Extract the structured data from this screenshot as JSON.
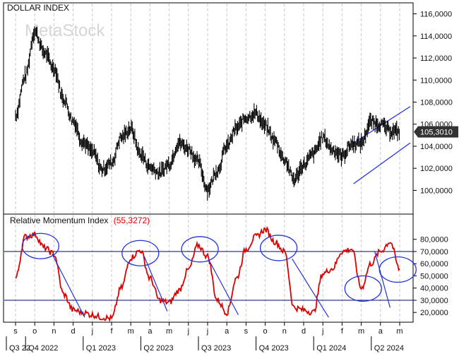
{
  "chart_data": [
    {
      "type": "line",
      "title": "DOLLAR INDEX",
      "watermark": "MetaStock",
      "ylim": [
        99000,
        117000
      ],
      "ytick_labels": [
        "100,0000",
        "102,0000",
        "104,0000",
        "106,0000",
        "108,0000",
        "110,0000",
        "112,0000",
        "114,0000",
        "116,0000"
      ],
      "ytick_values": [
        100000,
        102000,
        104000,
        106000,
        108000,
        110000,
        112000,
        114000,
        116000
      ],
      "last_value_label": "105,3010",
      "last_value": 105301,
      "x_months": [
        "s",
        "o",
        "n",
        "d",
        "j",
        "f",
        "m",
        "a",
        "m",
        "j",
        "j",
        "a",
        "s",
        "o",
        "n",
        "d",
        "j",
        "f",
        "m",
        "a",
        "m"
      ],
      "x_quarters": [
        "Q3 22",
        "Q4 2022",
        "Q1 2023",
        "Q2 2023",
        "Q3 2023",
        "Q4 2023",
        "Q1 2024",
        "Q2 2024"
      ],
      "series": [
        {
          "color": "#000000",
          "x": [
            0,
            0.5,
            1,
            1.5,
            2,
            2.5,
            3,
            3.5,
            4,
            4.5,
            5,
            5.5,
            6,
            6.5,
            7,
            7.5,
            8,
            8.5,
            9,
            9.5,
            10,
            10.5,
            11,
            11.5,
            12,
            12.5,
            13,
            13.5,
            14,
            14.5,
            15,
            15.5,
            16,
            16.5,
            17,
            17.5,
            18,
            18.5,
            19,
            19.5,
            20
          ],
          "values": [
            106800,
            110300,
            114400,
            112500,
            111100,
            108300,
            106300,
            104400,
            103500,
            101900,
            102500,
            104800,
            105600,
            103300,
            102100,
            101600,
            102400,
            104300,
            103800,
            102600,
            100100,
            101800,
            104000,
            105600,
            106600,
            107000,
            105800,
            104500,
            102800,
            101000,
            102300,
            103300,
            104800,
            103700,
            103100,
            104200,
            104300,
            106200,
            106000,
            105400,
            105301
          ]
        }
      ],
      "channel_lines": [
        {
          "color": "#2233dd",
          "x": [
            17.6,
            20.55
          ],
          "values": [
            104300,
            107600
          ]
        },
        {
          "color": "#2233dd",
          "x": [
            17.6,
            20.55
          ],
          "values": [
            100600,
            104300
          ]
        }
      ]
    },
    {
      "type": "line",
      "title": "Relative Momentum Index",
      "current_value_label": "(55,3272)",
      "ylim": [
        12000,
        92000
      ],
      "ytick_labels": [
        "20,0000",
        "30,0000",
        "40,0000",
        "50,0000",
        "60,0000",
        "70,0000",
        "80,0000"
      ],
      "ytick_values": [
        20000,
        30000,
        40000,
        50000,
        60000,
        70000,
        80000
      ],
      "hlines": [
        70000,
        30000
      ],
      "series": [
        {
          "color": "#dd0000",
          "x": [
            0,
            0.5,
            1,
            1.5,
            2,
            2.5,
            3,
            3.5,
            4,
            4.5,
            5,
            5.5,
            6,
            6.5,
            7,
            7.5,
            8,
            8.5,
            9,
            9.5,
            10,
            10.5,
            11,
            11.5,
            12,
            12.5,
            13,
            13.5,
            14,
            14.5,
            15,
            15.5,
            16,
            16.5,
            17,
            17.5,
            18,
            18.5,
            19,
            19.5,
            20
          ],
          "values": [
            48000,
            82000,
            84000,
            73000,
            68000,
            35000,
            22000,
            20000,
            18000,
            16000,
            15000,
            40000,
            65000,
            71000,
            48000,
            30000,
            28000,
            38000,
            55000,
            75000,
            66000,
            30000,
            20000,
            48000,
            72000,
            82000,
            88000,
            78000,
            70000,
            24000,
            22000,
            20000,
            52000,
            56000,
            70000,
            72000,
            40000,
            60000,
            70000,
            78000,
            55327
          ]
        }
      ],
      "circled_peaks": [
        1.3,
        6.5,
        9.6,
        13.7,
        18.1,
        19.9
      ],
      "trend_lines": [
        {
          "color": "#2233dd",
          "x": [
            1.9,
            3.6
          ],
          "values": [
            68000,
            16000
          ]
        },
        {
          "color": "#2233dd",
          "x": [
            6.7,
            7.9
          ],
          "values": [
            66000,
            21000
          ]
        },
        {
          "color": "#2233dd",
          "x": [
            10.1,
            11.6
          ],
          "values": [
            62000,
            18000
          ]
        },
        {
          "color": "#2233dd",
          "x": [
            14.4,
            16.3
          ],
          "values": [
            64000,
            16000
          ]
        },
        {
          "color": "#2233dd",
          "x": [
            18.7,
            19.5
          ],
          "values": [
            70000,
            24000
          ]
        }
      ]
    }
  ],
  "colors": {
    "axis": "#000000",
    "grid": "#c8c8c8",
    "price": "#000000",
    "indicator": "#dd0000",
    "annotation": "#2233dd",
    "value_box": "#333333"
  }
}
